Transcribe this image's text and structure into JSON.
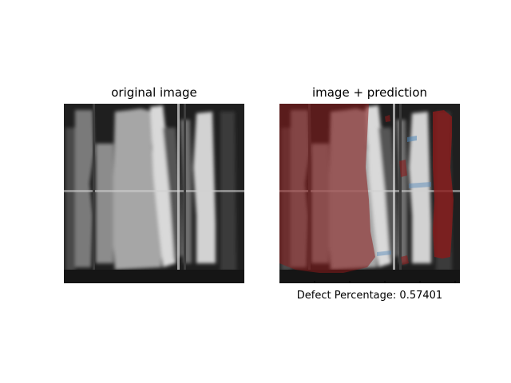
{
  "figure": {
    "left_title": "original image",
    "right_title": "image + prediction",
    "caption_label": "Defect Percentage:",
    "caption_value": "0.57401"
  },
  "colors": {
    "background": "#ffffff",
    "defect_mask": "#8b1a1a",
    "secondary_mask": "#4f86b8",
    "text": "#000000"
  }
}
